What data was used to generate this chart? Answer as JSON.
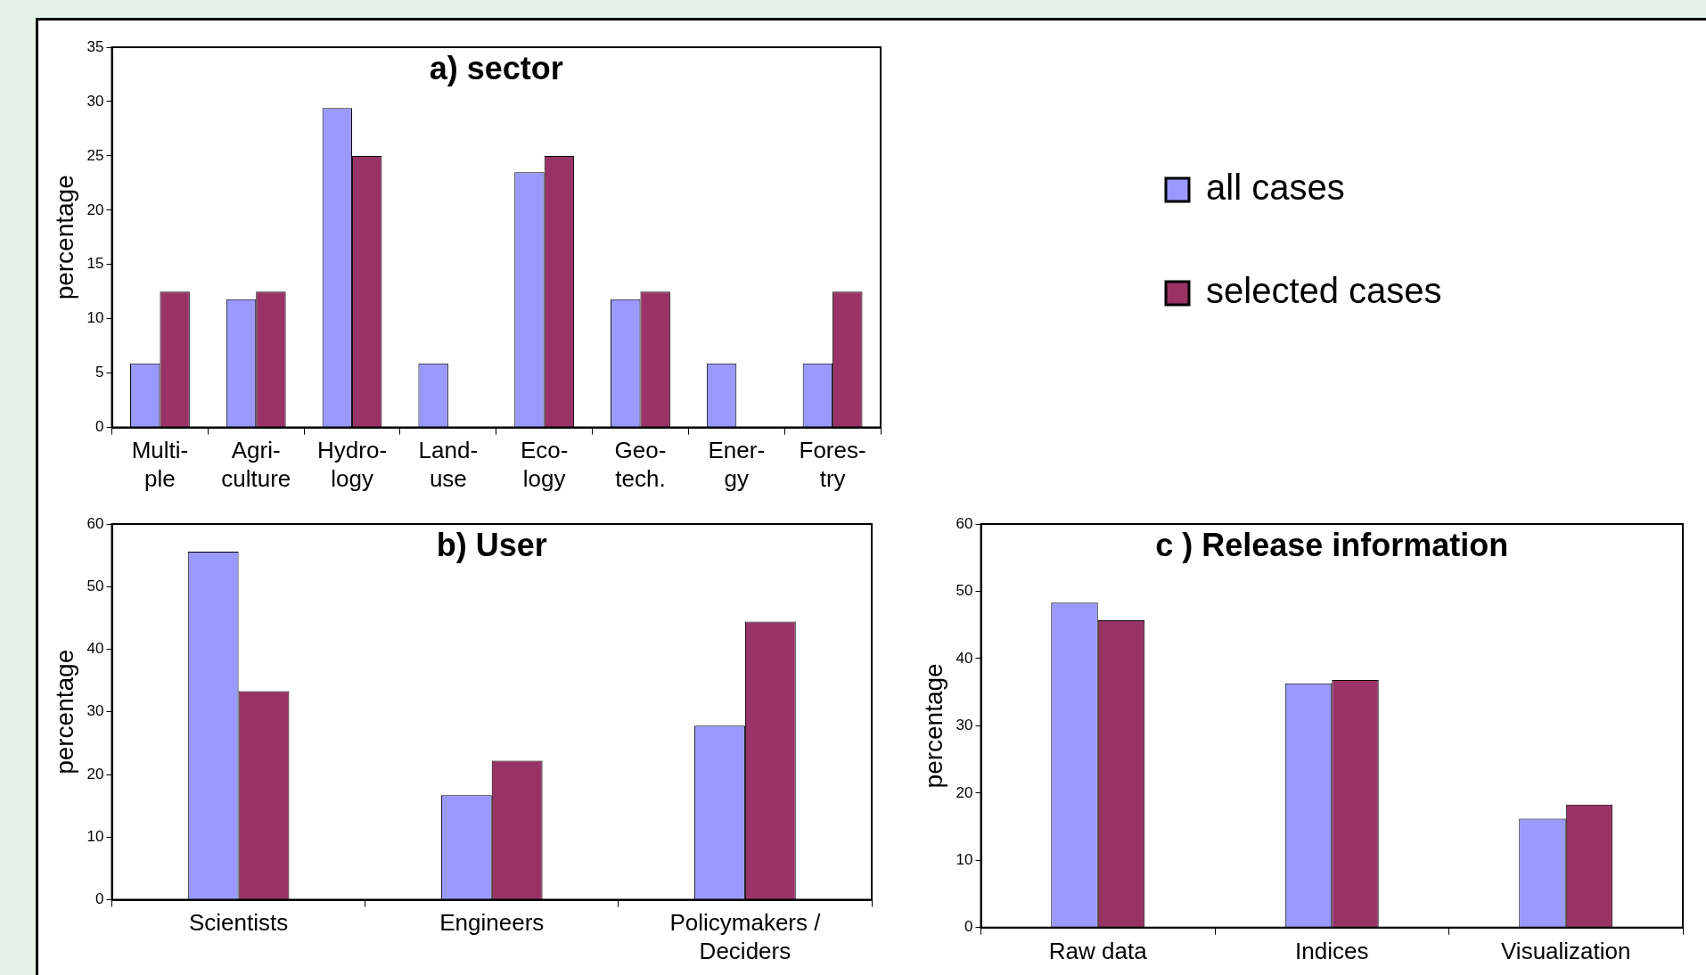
{
  "chart_data": [
    {
      "type": "bar",
      "title": "a) sector",
      "ylabel": "percentage",
      "categories": [
        "Multi-\nple",
        "Agri-\nculture",
        "Hydro-\nlogy",
        "Land-\nuse",
        "Eco-\nlogy",
        "Geo-\ntech.",
        "Ener-\ngy",
        "Fores-\ntry"
      ],
      "series": [
        {
          "name": "all cases",
          "color": "#9999ff",
          "values": [
            5.9,
            11.8,
            29.4,
            5.9,
            23.5,
            11.8,
            5.9,
            5.9
          ]
        },
        {
          "name": "selected cases",
          "color": "#993366",
          "values": [
            12.5,
            12.5,
            25,
            0,
            25,
            12.5,
            0,
            12.5
          ]
        }
      ],
      "ylim": [
        0,
        35
      ],
      "yticks": [
        0,
        5,
        10,
        15,
        20,
        25,
        30,
        35
      ],
      "legend": "right",
      "grid": false
    },
    {
      "type": "bar",
      "title": "b) User",
      "ylabel": "percentage",
      "categories": [
        "Scientists",
        "Engineers",
        "Policymakers /\nDeciders"
      ],
      "series": [
        {
          "color": "#9999ff",
          "values": [
            55.6,
            16.7,
            27.8
          ]
        },
        {
          "color": "#993366",
          "values": [
            33.3,
            22.2,
            44.4
          ]
        }
      ],
      "ylim": [
        0,
        60
      ],
      "yticks": [
        0,
        10,
        20,
        30,
        40,
        50,
        60
      ],
      "grid": false
    },
    {
      "type": "bar",
      "title": "c ) Release information",
      "ylabel": "percentage",
      "categories": [
        "Raw data",
        "Indices",
        "Visualization"
      ],
      "series": [
        {
          "color": "#9999ff",
          "values": [
            48.3,
            36.3,
            16.2
          ]
        },
        {
          "color": "#993366",
          "values": [
            45.7,
            36.8,
            18.3
          ]
        }
      ],
      "ylim": [
        0,
        60
      ],
      "yticks": [
        0,
        10,
        20,
        30,
        40,
        50,
        60
      ],
      "grid": false
    }
  ]
}
